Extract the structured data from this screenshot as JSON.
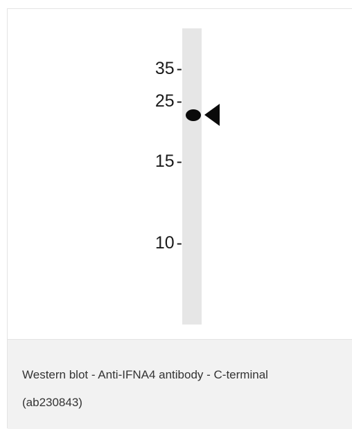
{
  "figure": {
    "markers": [
      {
        "label": "35",
        "tick": "-"
      },
      {
        "label": "25",
        "tick": "-"
      },
      {
        "label": "15",
        "tick": "-"
      },
      {
        "label": "10",
        "tick": "-"
      }
    ]
  },
  "caption": {
    "line1": "Western blot - Anti-IFNA4 antibody - C-terminal",
    "line2": "(ab230843)"
  }
}
